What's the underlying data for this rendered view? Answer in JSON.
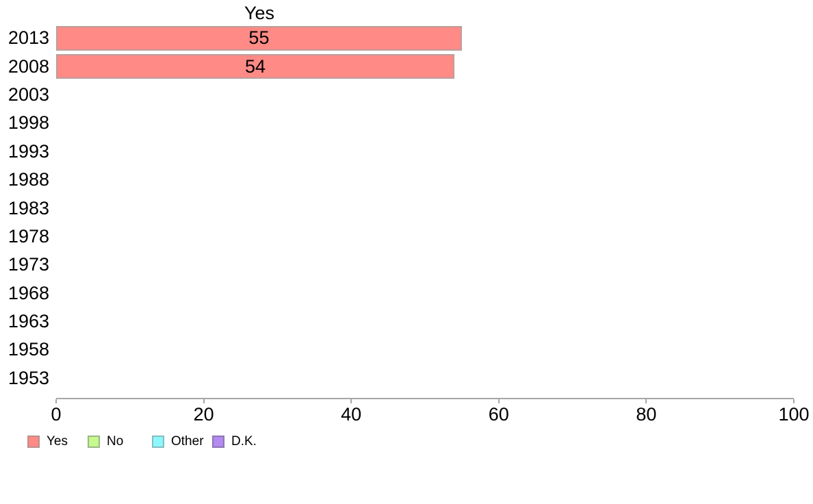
{
  "chart_data": {
    "type": "bar",
    "orientation": "horizontal",
    "title": "Yes",
    "categories": [
      "2013",
      "2008",
      "2003",
      "1998",
      "1993",
      "1988",
      "1983",
      "1978",
      "1973",
      "1968",
      "1963",
      "1958",
      "1953"
    ],
    "values": [
      55,
      54,
      null,
      null,
      null,
      null,
      null,
      null,
      null,
      null,
      null,
      null,
      null
    ],
    "xlabel": "",
    "ylabel": "",
    "xlim": [
      0,
      100
    ],
    "x_ticks": [
      "0",
      "20",
      "40",
      "60",
      "80",
      "100"
    ],
    "grid": "off",
    "bar_color": "#FF8A86",
    "bar_border_color": "#BC9E9B",
    "axis_color": "#A6A6A6",
    "legend_position": "bottom-left",
    "legend": [
      {
        "label": "Yes",
        "color": "#FF8A86",
        "border": "#BC8F8C"
      },
      {
        "label": "No",
        "color": "#C7FA8C",
        "border": "#9BB58A"
      },
      {
        "label": "Other",
        "color": "#8DF8FC",
        "border": "#86BCBF"
      },
      {
        "label": "D.K.",
        "color": "#B489F0",
        "border": "#8C76B5"
      }
    ]
  }
}
